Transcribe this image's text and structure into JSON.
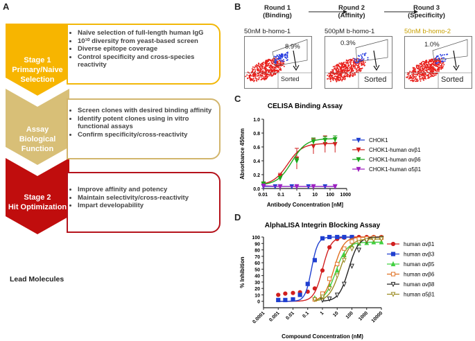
{
  "panel_a": {
    "letter": "A",
    "stages": [
      {
        "title": "Stage 1",
        "subtitle": "Primary/Naive\nSelection",
        "color": "#f7b500",
        "border": "#f2b707",
        "bullets": [
          "Naïve selection of full-length human IgG",
          "10¹⁰ diversity from yeast-based screen",
          "Diverse epitope coverage",
          "Control specificity and cross-species reactivity"
        ]
      },
      {
        "title": "",
        "subtitle": "Assay Biological\nFunction",
        "color": "#d8bf77",
        "border": "#d2b56c",
        "bullets": [
          "Screen clones with desired binding affinity",
          "Identify potent clones using in vitro functional assays",
          "Confirm specificity/cross-reactivity"
        ]
      },
      {
        "title": "Stage 2",
        "subtitle": "Hit Optimization",
        "color": "#c00d0d",
        "border": "#b5121b",
        "bullets": [
          "Improve affinity and potency",
          "Maintain selectivity/cross-reactivity",
          "Impart developability"
        ]
      }
    ],
    "lead": "Lead Molecules"
  },
  "panel_b": {
    "letter": "B",
    "rounds": [
      {
        "label": "Round 1\n(Binding)",
        "reagent": "50nM b-homo-1",
        "reagent_color": "#333333",
        "pct": "8.9%",
        "sorted": "Sorted"
      },
      {
        "label": "Round 2\n(Affinity)",
        "reagent": "500pM b-homo-1",
        "reagent_color": "#333333",
        "pct": "0.3%",
        "sorted": "Sorted"
      },
      {
        "label": "Round 3\n(Specificity)",
        "reagent": "50nM b-homo-2",
        "reagent_color": "#c8a000",
        "pct": "1.0%",
        "sorted": "Sorted"
      }
    ]
  },
  "chart_data": [
    {
      "panel": "C",
      "type": "line",
      "title": "CELISA Binding Assay",
      "xlabel": "Antibody Concentration [nM]",
      "ylabel": "Absorbance 450nm",
      "xscale": "log",
      "xlim": [
        0.01,
        1000
      ],
      "ylim": [
        0,
        1.0
      ],
      "xticks": [
        "0.01",
        "0.1",
        "1",
        "10",
        "100",
        "1000"
      ],
      "yticks": [
        "0.0",
        "0.2",
        "0.4",
        "0.6",
        "0.8",
        "1.0"
      ],
      "legend_position": "right",
      "series": [
        {
          "name": "CHOK1",
          "color": "#1f3fd0",
          "marker": "triangle-down",
          "x": [
            0.01,
            0.05,
            0.1,
            0.5,
            1,
            5,
            10,
            50,
            200
          ],
          "y": [
            0.03,
            0.03,
            0.03,
            0.03,
            0.03,
            0.03,
            0.03,
            0.03,
            0.03
          ]
        },
        {
          "name": "CHOK1-human αvβ1",
          "color": "#d11f1f",
          "marker": "triangle-down",
          "x": [
            0.01,
            0.1,
            1,
            10,
            50,
            200
          ],
          "y": [
            0.07,
            0.18,
            0.43,
            0.61,
            0.64,
            0.64
          ],
          "err": [
            0.02,
            0.04,
            0.15,
            0.11,
            0.12,
            0.12
          ],
          "ec50": 0.28,
          "top": 0.65,
          "bottom": 0.05
        },
        {
          "name": "CHOK1-human αvβ6",
          "color": "#1da81d",
          "marker": "triangle-down",
          "x": [
            0.01,
            0.1,
            1,
            10,
            50,
            200
          ],
          "y": [
            0.07,
            0.15,
            0.4,
            0.68,
            0.7,
            0.71
          ],
          "err": [
            0.01,
            0.02,
            0.04,
            0.05,
            0.05,
            0.05
          ],
          "ec50": 0.5,
          "top": 0.72,
          "bottom": 0.05
        },
        {
          "name": "CHOK1-human α5β1",
          "color": "#a020c0",
          "marker": "triangle-down",
          "x": [
            0.01,
            0.1,
            1,
            10,
            200
          ],
          "y": [
            0.04,
            0.03,
            0.03,
            0.03,
            0.03
          ]
        }
      ]
    },
    {
      "panel": "D",
      "type": "line",
      "title": "AlphaLISA Integrin Blocking Assay",
      "xlabel": "Compound Concentration (nM)",
      "ylabel": "% Inhibition",
      "xscale": "log",
      "xlim": [
        0.0001,
        10000
      ],
      "ylim": [
        -10,
        100
      ],
      "xticks": [
        "0.0001",
        "0.001",
        "0.01",
        "0.1",
        "1",
        "10",
        "100",
        "1000",
        "10000"
      ],
      "yticks": [
        "0",
        "10",
        "20",
        "30",
        "40",
        "50",
        "60",
        "70",
        "80",
        "90",
        "100"
      ],
      "legend_position": "right",
      "series": [
        {
          "name": "human αvβ1",
          "color": "#d11f1f",
          "marker": "circle",
          "ec50": 1.0,
          "hill": 1.5,
          "top": 100,
          "x": [
            0.001,
            0.003,
            0.01,
            0.03,
            0.1,
            0.3,
            1,
            3,
            10,
            30,
            100,
            300,
            1000,
            3000,
            10000
          ],
          "y": [
            10,
            12,
            13,
            14,
            15,
            20,
            48,
            84,
            97,
            99,
            100,
            100,
            100,
            100,
            100
          ]
        },
        {
          "name": "human αvβ3",
          "color": "#1f3fd0",
          "marker": "square",
          "ec50": 0.18,
          "hill": 2.0,
          "top": 100,
          "x": [
            0.001,
            0.003,
            0.01,
            0.03,
            0.1,
            0.3,
            1,
            3,
            10,
            30,
            100
          ],
          "y": [
            2,
            2,
            3,
            10,
            27,
            64,
            98,
            100,
            100,
            100,
            100
          ]
        },
        {
          "name": "human αvβ5",
          "color": "#40d040",
          "marker": "triangle-up",
          "ec50": 8,
          "hill": 1.2,
          "top": 92,
          "x": [
            0.3,
            1,
            3,
            10,
            30,
            100,
            300,
            1000,
            3000,
            10000
          ],
          "y": [
            5,
            10,
            25,
            48,
            72,
            86,
            90,
            91,
            92,
            92
          ]
        },
        {
          "name": "human αvβ6",
          "color": "#e07020",
          "marker": "square-open",
          "ec50": 6,
          "hill": 1.3,
          "top": 100,
          "x": [
            0.3,
            1,
            3,
            10,
            30,
            100,
            300,
            1000,
            3000,
            10000
          ],
          "y": [
            3,
            12,
            35,
            58,
            82,
            93,
            97,
            98,
            99,
            99
          ]
        },
        {
          "name": "human αvβ8",
          "color": "#222222",
          "marker": "triangle-open",
          "ec50": 60,
          "hill": 1.3,
          "top": 100,
          "x": [
            1,
            3,
            10,
            30,
            100,
            300,
            1000,
            3000,
            10000
          ],
          "y": [
            2,
            4,
            10,
            27,
            55,
            80,
            94,
            97,
            98
          ]
        },
        {
          "name": "human α5β1",
          "color": "#9a8a20",
          "marker": "triangle-down-open",
          "ec50": 15,
          "hill": 1.2,
          "top": 97,
          "x": [
            0.3,
            1,
            3,
            10,
            30,
            100,
            300,
            1000,
            3000,
            10000
          ],
          "y": [
            3,
            7,
            20,
            40,
            64,
            82,
            92,
            95,
            96,
            97
          ]
        }
      ]
    }
  ]
}
